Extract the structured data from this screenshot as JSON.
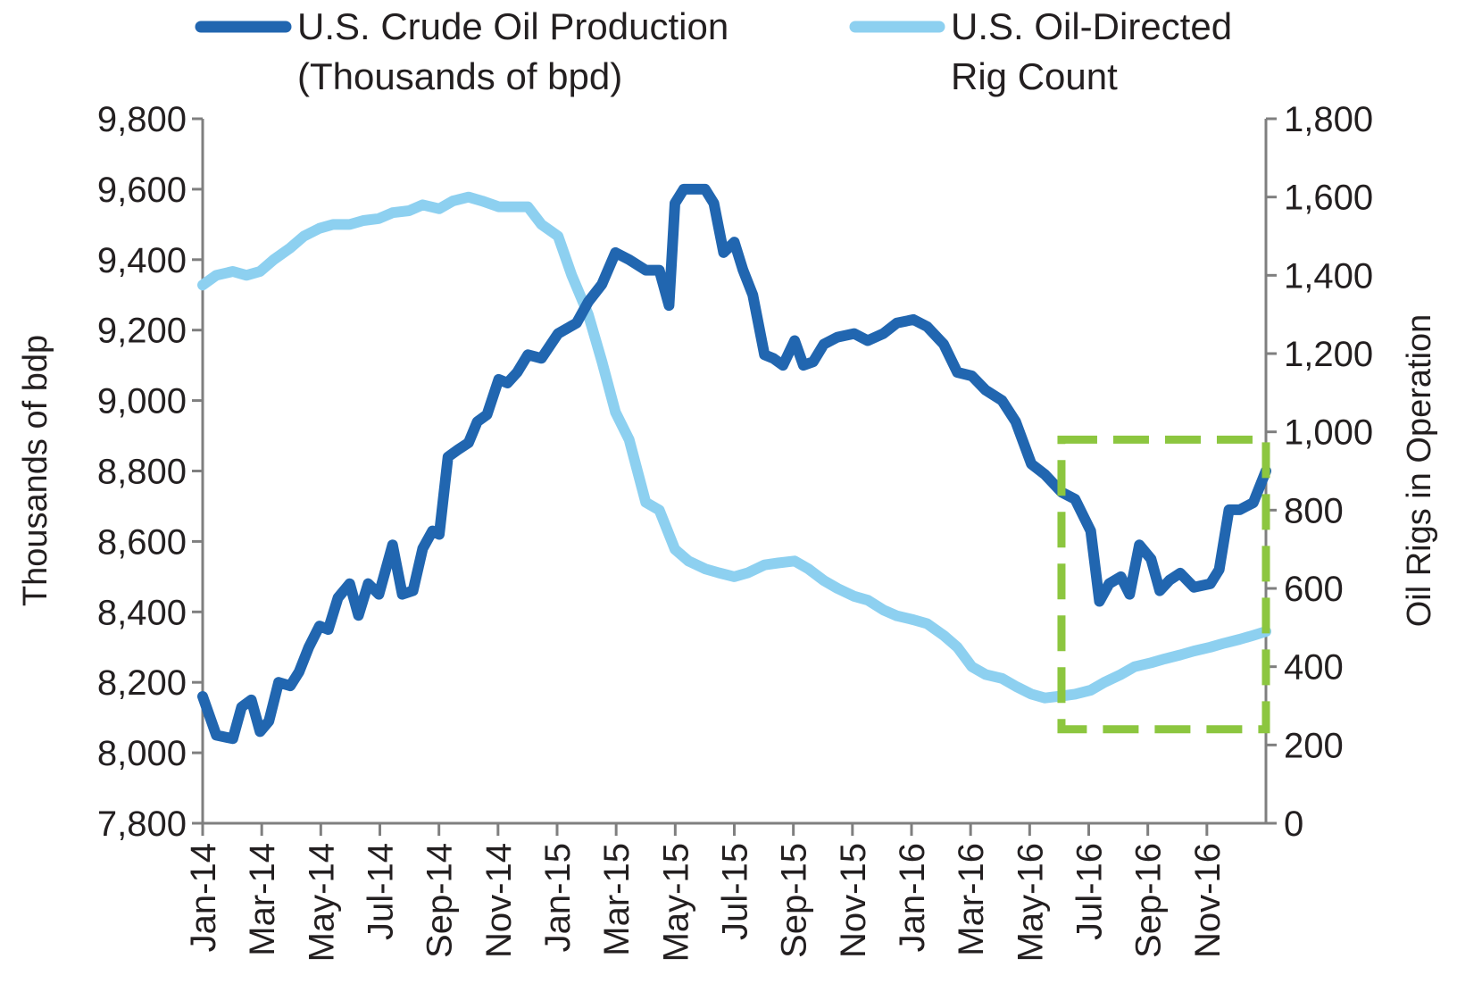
{
  "chart_data": {
    "type": "line",
    "title": "",
    "ylabel": "Thousands of bdp",
    "y2label": "Oil Rigs in Operation",
    "ylim": [
      7800,
      9800
    ],
    "y2lim": [
      0,
      1800
    ],
    "yticks": [
      "7,800",
      "8,000",
      "8,200",
      "8,400",
      "8,600",
      "8,800",
      "9,000",
      "9,200",
      "9,400",
      "9,600",
      "9,800"
    ],
    "y2ticks": [
      "0",
      "200",
      "400",
      "600",
      "800",
      "1,000",
      "1,200",
      "1,400",
      "1,600",
      "1,800"
    ],
    "xticks": [
      "Jan-14",
      "Mar-14",
      "May-14",
      "Jul-14",
      "Sep-14",
      "Nov-14",
      "Jan-15",
      "Mar-15",
      "May-15",
      "Jul-15",
      "Sep-15",
      "Nov-15",
      "Jan-16",
      "Mar-16",
      "May-16",
      "Jul-16",
      "Sep-16",
      "Nov-16"
    ],
    "grid": false,
    "legend_position": "top",
    "series": [
      {
        "name": "U.S. Crude Oil Production (Thousands of bpd)",
        "legend_lines": [
          "U.S. Crude Oil Production",
          "(Thousands of bpd)"
        ],
        "axis": "left",
        "color": "#2166b0",
        "points": [
          [
            "2014-01-01",
            8160
          ],
          [
            "2014-01-15",
            8050
          ],
          [
            "2014-02-01",
            8040
          ],
          [
            "2014-02-10",
            8130
          ],
          [
            "2014-02-20",
            8150
          ],
          [
            "2014-03-01",
            8060
          ],
          [
            "2014-03-10",
            8090
          ],
          [
            "2014-03-20",
            8200
          ],
          [
            "2014-04-01",
            8190
          ],
          [
            "2014-04-10",
            8230
          ],
          [
            "2014-04-20",
            8300
          ],
          [
            "2014-05-01",
            8360
          ],
          [
            "2014-05-10",
            8350
          ],
          [
            "2014-05-20",
            8440
          ],
          [
            "2014-06-01",
            8480
          ],
          [
            "2014-06-10",
            8390
          ],
          [
            "2014-06-20",
            8480
          ],
          [
            "2014-07-01",
            8450
          ],
          [
            "2014-07-15",
            8590
          ],
          [
            "2014-07-25",
            8450
          ],
          [
            "2014-08-05",
            8460
          ],
          [
            "2014-08-15",
            8580
          ],
          [
            "2014-08-25",
            8630
          ],
          [
            "2014-09-01",
            8620
          ],
          [
            "2014-09-10",
            8840
          ],
          [
            "2014-09-20",
            8860
          ],
          [
            "2014-10-01",
            8880
          ],
          [
            "2014-10-10",
            8940
          ],
          [
            "2014-10-20",
            8960
          ],
          [
            "2014-11-01",
            9060
          ],
          [
            "2014-11-10",
            9050
          ],
          [
            "2014-11-20",
            9080
          ],
          [
            "2014-12-01",
            9130
          ],
          [
            "2014-12-15",
            9120
          ],
          [
            "2015-01-01",
            9190
          ],
          [
            "2015-01-20",
            9220
          ],
          [
            "2015-02-01",
            9280
          ],
          [
            "2015-02-15",
            9330
          ],
          [
            "2015-03-01",
            9420
          ],
          [
            "2015-03-15",
            9400
          ],
          [
            "2015-04-01",
            9370
          ],
          [
            "2015-04-15",
            9370
          ],
          [
            "2015-04-25",
            9270
          ],
          [
            "2015-05-01",
            9560
          ],
          [
            "2015-05-10",
            9600
          ],
          [
            "2015-05-20",
            9600
          ],
          [
            "2015-06-01",
            9600
          ],
          [
            "2015-06-10",
            9560
          ],
          [
            "2015-06-20",
            9420
          ],
          [
            "2015-07-01",
            9450
          ],
          [
            "2015-07-10",
            9370
          ],
          [
            "2015-07-20",
            9300
          ],
          [
            "2015-08-01",
            9130
          ],
          [
            "2015-08-10",
            9120
          ],
          [
            "2015-08-20",
            9100
          ],
          [
            "2015-09-01",
            9170
          ],
          [
            "2015-09-10",
            9100
          ],
          [
            "2015-09-20",
            9110
          ],
          [
            "2015-10-01",
            9160
          ],
          [
            "2015-10-15",
            9180
          ],
          [
            "2015-11-01",
            9190
          ],
          [
            "2015-11-15",
            9170
          ],
          [
            "2015-12-01",
            9190
          ],
          [
            "2015-12-15",
            9220
          ],
          [
            "2016-01-01",
            9230
          ],
          [
            "2016-01-15",
            9210
          ],
          [
            "2016-02-01",
            9160
          ],
          [
            "2016-02-15",
            9080
          ],
          [
            "2016-03-01",
            9070
          ],
          [
            "2016-03-15",
            9030
          ],
          [
            "2016-04-01",
            9000
          ],
          [
            "2016-04-15",
            8940
          ],
          [
            "2016-05-01",
            8820
          ],
          [
            "2016-05-15",
            8790
          ],
          [
            "2016-06-01",
            8740
          ],
          [
            "2016-06-15",
            8720
          ],
          [
            "2016-07-01",
            8630
          ],
          [
            "2016-07-10",
            8430
          ],
          [
            "2016-07-20",
            8480
          ],
          [
            "2016-08-01",
            8500
          ],
          [
            "2016-08-10",
            8450
          ],
          [
            "2016-08-20",
            8590
          ],
          [
            "2016-09-01",
            8550
          ],
          [
            "2016-09-10",
            8460
          ],
          [
            "2016-09-20",
            8490
          ],
          [
            "2016-10-01",
            8510
          ],
          [
            "2016-10-15",
            8470
          ],
          [
            "2016-11-01",
            8480
          ],
          [
            "2016-11-10",
            8520
          ],
          [
            "2016-11-20",
            8690
          ],
          [
            "2016-12-01",
            8690
          ],
          [
            "2016-12-15",
            8710
          ],
          [
            "2016-12-28",
            8800
          ]
        ]
      },
      {
        "name": "U.S. Oil-Directed Rig Count",
        "legend_lines": [
          "U.S. Oil-Directed",
          "Rig Count"
        ],
        "axis": "right",
        "color": "#8dd0f0",
        "points": [
          [
            "2014-01-01",
            1375
          ],
          [
            "2014-01-15",
            1400
          ],
          [
            "2014-02-01",
            1410
          ],
          [
            "2014-02-15",
            1400
          ],
          [
            "2014-03-01",
            1410
          ],
          [
            "2014-03-15",
            1440
          ],
          [
            "2014-04-01",
            1470
          ],
          [
            "2014-04-15",
            1500
          ],
          [
            "2014-05-01",
            1520
          ],
          [
            "2014-05-15",
            1530
          ],
          [
            "2014-06-01",
            1530
          ],
          [
            "2014-06-15",
            1540
          ],
          [
            "2014-07-01",
            1545
          ],
          [
            "2014-07-15",
            1560
          ],
          [
            "2014-08-01",
            1565
          ],
          [
            "2014-08-15",
            1580
          ],
          [
            "2014-09-01",
            1570
          ],
          [
            "2014-09-15",
            1590
          ],
          [
            "2014-10-01",
            1600
          ],
          [
            "2014-10-15",
            1590
          ],
          [
            "2014-11-01",
            1575
          ],
          [
            "2014-11-15",
            1575
          ],
          [
            "2014-12-01",
            1575
          ],
          [
            "2014-12-15",
            1530
          ],
          [
            "2015-01-01",
            1500
          ],
          [
            "2015-01-15",
            1400
          ],
          [
            "2015-02-01",
            1300
          ],
          [
            "2015-02-15",
            1180
          ],
          [
            "2015-03-01",
            1050
          ],
          [
            "2015-03-15",
            980
          ],
          [
            "2015-04-01",
            820
          ],
          [
            "2015-04-15",
            800
          ],
          [
            "2015-05-01",
            700
          ],
          [
            "2015-05-15",
            670
          ],
          [
            "2015-06-01",
            650
          ],
          [
            "2015-06-15",
            640
          ],
          [
            "2015-07-01",
            630
          ],
          [
            "2015-07-15",
            640
          ],
          [
            "2015-08-01",
            660
          ],
          [
            "2015-08-15",
            665
          ],
          [
            "2015-09-01",
            670
          ],
          [
            "2015-09-15",
            650
          ],
          [
            "2015-10-01",
            620
          ],
          [
            "2015-10-15",
            600
          ],
          [
            "2015-11-01",
            580
          ],
          [
            "2015-11-15",
            570
          ],
          [
            "2015-12-01",
            545
          ],
          [
            "2015-12-15",
            530
          ],
          [
            "2016-01-01",
            520
          ],
          [
            "2016-01-15",
            510
          ],
          [
            "2016-02-01",
            480
          ],
          [
            "2016-02-15",
            450
          ],
          [
            "2016-03-01",
            400
          ],
          [
            "2016-03-15",
            380
          ],
          [
            "2016-04-01",
            370
          ],
          [
            "2016-04-15",
            350
          ],
          [
            "2016-05-01",
            330
          ],
          [
            "2016-05-15",
            320
          ],
          [
            "2016-06-01",
            325
          ],
          [
            "2016-06-15",
            330
          ],
          [
            "2016-07-01",
            340
          ],
          [
            "2016-07-15",
            360
          ],
          [
            "2016-08-01",
            380
          ],
          [
            "2016-08-15",
            400
          ],
          [
            "2016-09-01",
            410
          ],
          [
            "2016-09-15",
            420
          ],
          [
            "2016-10-01",
            430
          ],
          [
            "2016-10-15",
            440
          ],
          [
            "2016-11-01",
            450
          ],
          [
            "2016-11-15",
            460
          ],
          [
            "2016-12-01",
            470
          ],
          [
            "2016-12-15",
            480
          ],
          [
            "2016-12-28",
            490
          ]
        ]
      }
    ],
    "annotations": [
      {
        "type": "dashed-rectangle",
        "color": "#8cc63f",
        "x_range": [
          "2016-06-01",
          "2016-12-28"
        ],
        "y2_range": [
          240,
          980
        ]
      }
    ]
  }
}
